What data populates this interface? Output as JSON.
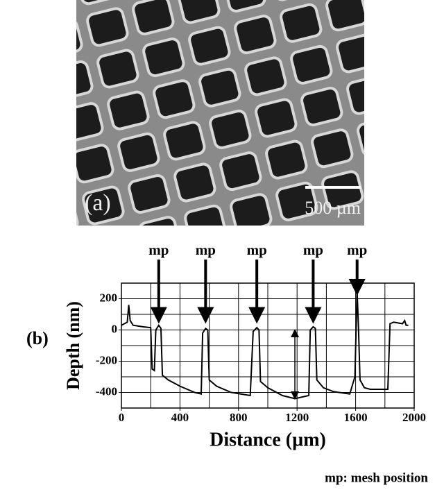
{
  "chart_data": {
    "type": "line",
    "photo_label": "(a)",
    "scale_bar_label": "500 µm",
    "panel_label": "(b)",
    "x_label": "Distance (µm)",
    "y_label": "Depth (nm)",
    "footnote": "mp: mesh position",
    "xlim": [
      0,
      2000
    ],
    "ylim": [
      -500,
      300
    ],
    "xticks": [
      0,
      400,
      800,
      1200,
      1600,
      2000
    ],
    "yticks": [
      200,
      0,
      -200,
      -400
    ],
    "xgrid": [
      0,
      200,
      400,
      600,
      800,
      1000,
      1200,
      1400,
      1600,
      1800,
      2000
    ],
    "ygrid": [
      300,
      200,
      100,
      0,
      -100,
      -200,
      -300,
      -400,
      -500
    ],
    "color": "#000000",
    "x": [
      0,
      20,
      40,
      50,
      60,
      80,
      150,
      200,
      210,
      225,
      235,
      255,
      270,
      280,
      320,
      400,
      500,
      545,
      555,
      575,
      590,
      600,
      650,
      750,
      880,
      900,
      925,
      940,
      950,
      1000,
      1100,
      1185,
      1280,
      1290,
      1310,
      1325,
      1335,
      1380,
      1450,
      1560,
      1595,
      1610,
      1620,
      1630,
      1660,
      1700,
      1820,
      1835,
      1860,
      1920,
      1935,
      1945,
      1960
    ],
    "values": [
      30,
      40,
      50,
      160,
      60,
      30,
      20,
      15,
      -250,
      -260,
      0,
      30,
      10,
      -290,
      -320,
      -360,
      -400,
      -410,
      -20,
      10,
      0,
      -320,
      -360,
      -400,
      -420,
      -10,
      15,
      0,
      -330,
      -370,
      -420,
      -440,
      -420,
      0,
      20,
      10,
      -320,
      -370,
      -395,
      -410,
      -300,
      250,
      0,
      -320,
      -370,
      -380,
      -380,
      40,
      50,
      40,
      60,
      30,
      30
    ],
    "annotations": [
      {
        "text": "mp",
        "x": 255,
        "y": 40
      },
      {
        "text": "mp",
        "x": 575,
        "y": 40
      },
      {
        "text": "mp",
        "x": 925,
        "y": 40
      },
      {
        "text": "mp",
        "x": 1310,
        "y": 40
      },
      {
        "text": "mp",
        "x": 1610,
        "y": 220
      }
    ],
    "depth_marker": {
      "x": 1185,
      "y": [
        -20,
        -420
      ]
    }
  }
}
